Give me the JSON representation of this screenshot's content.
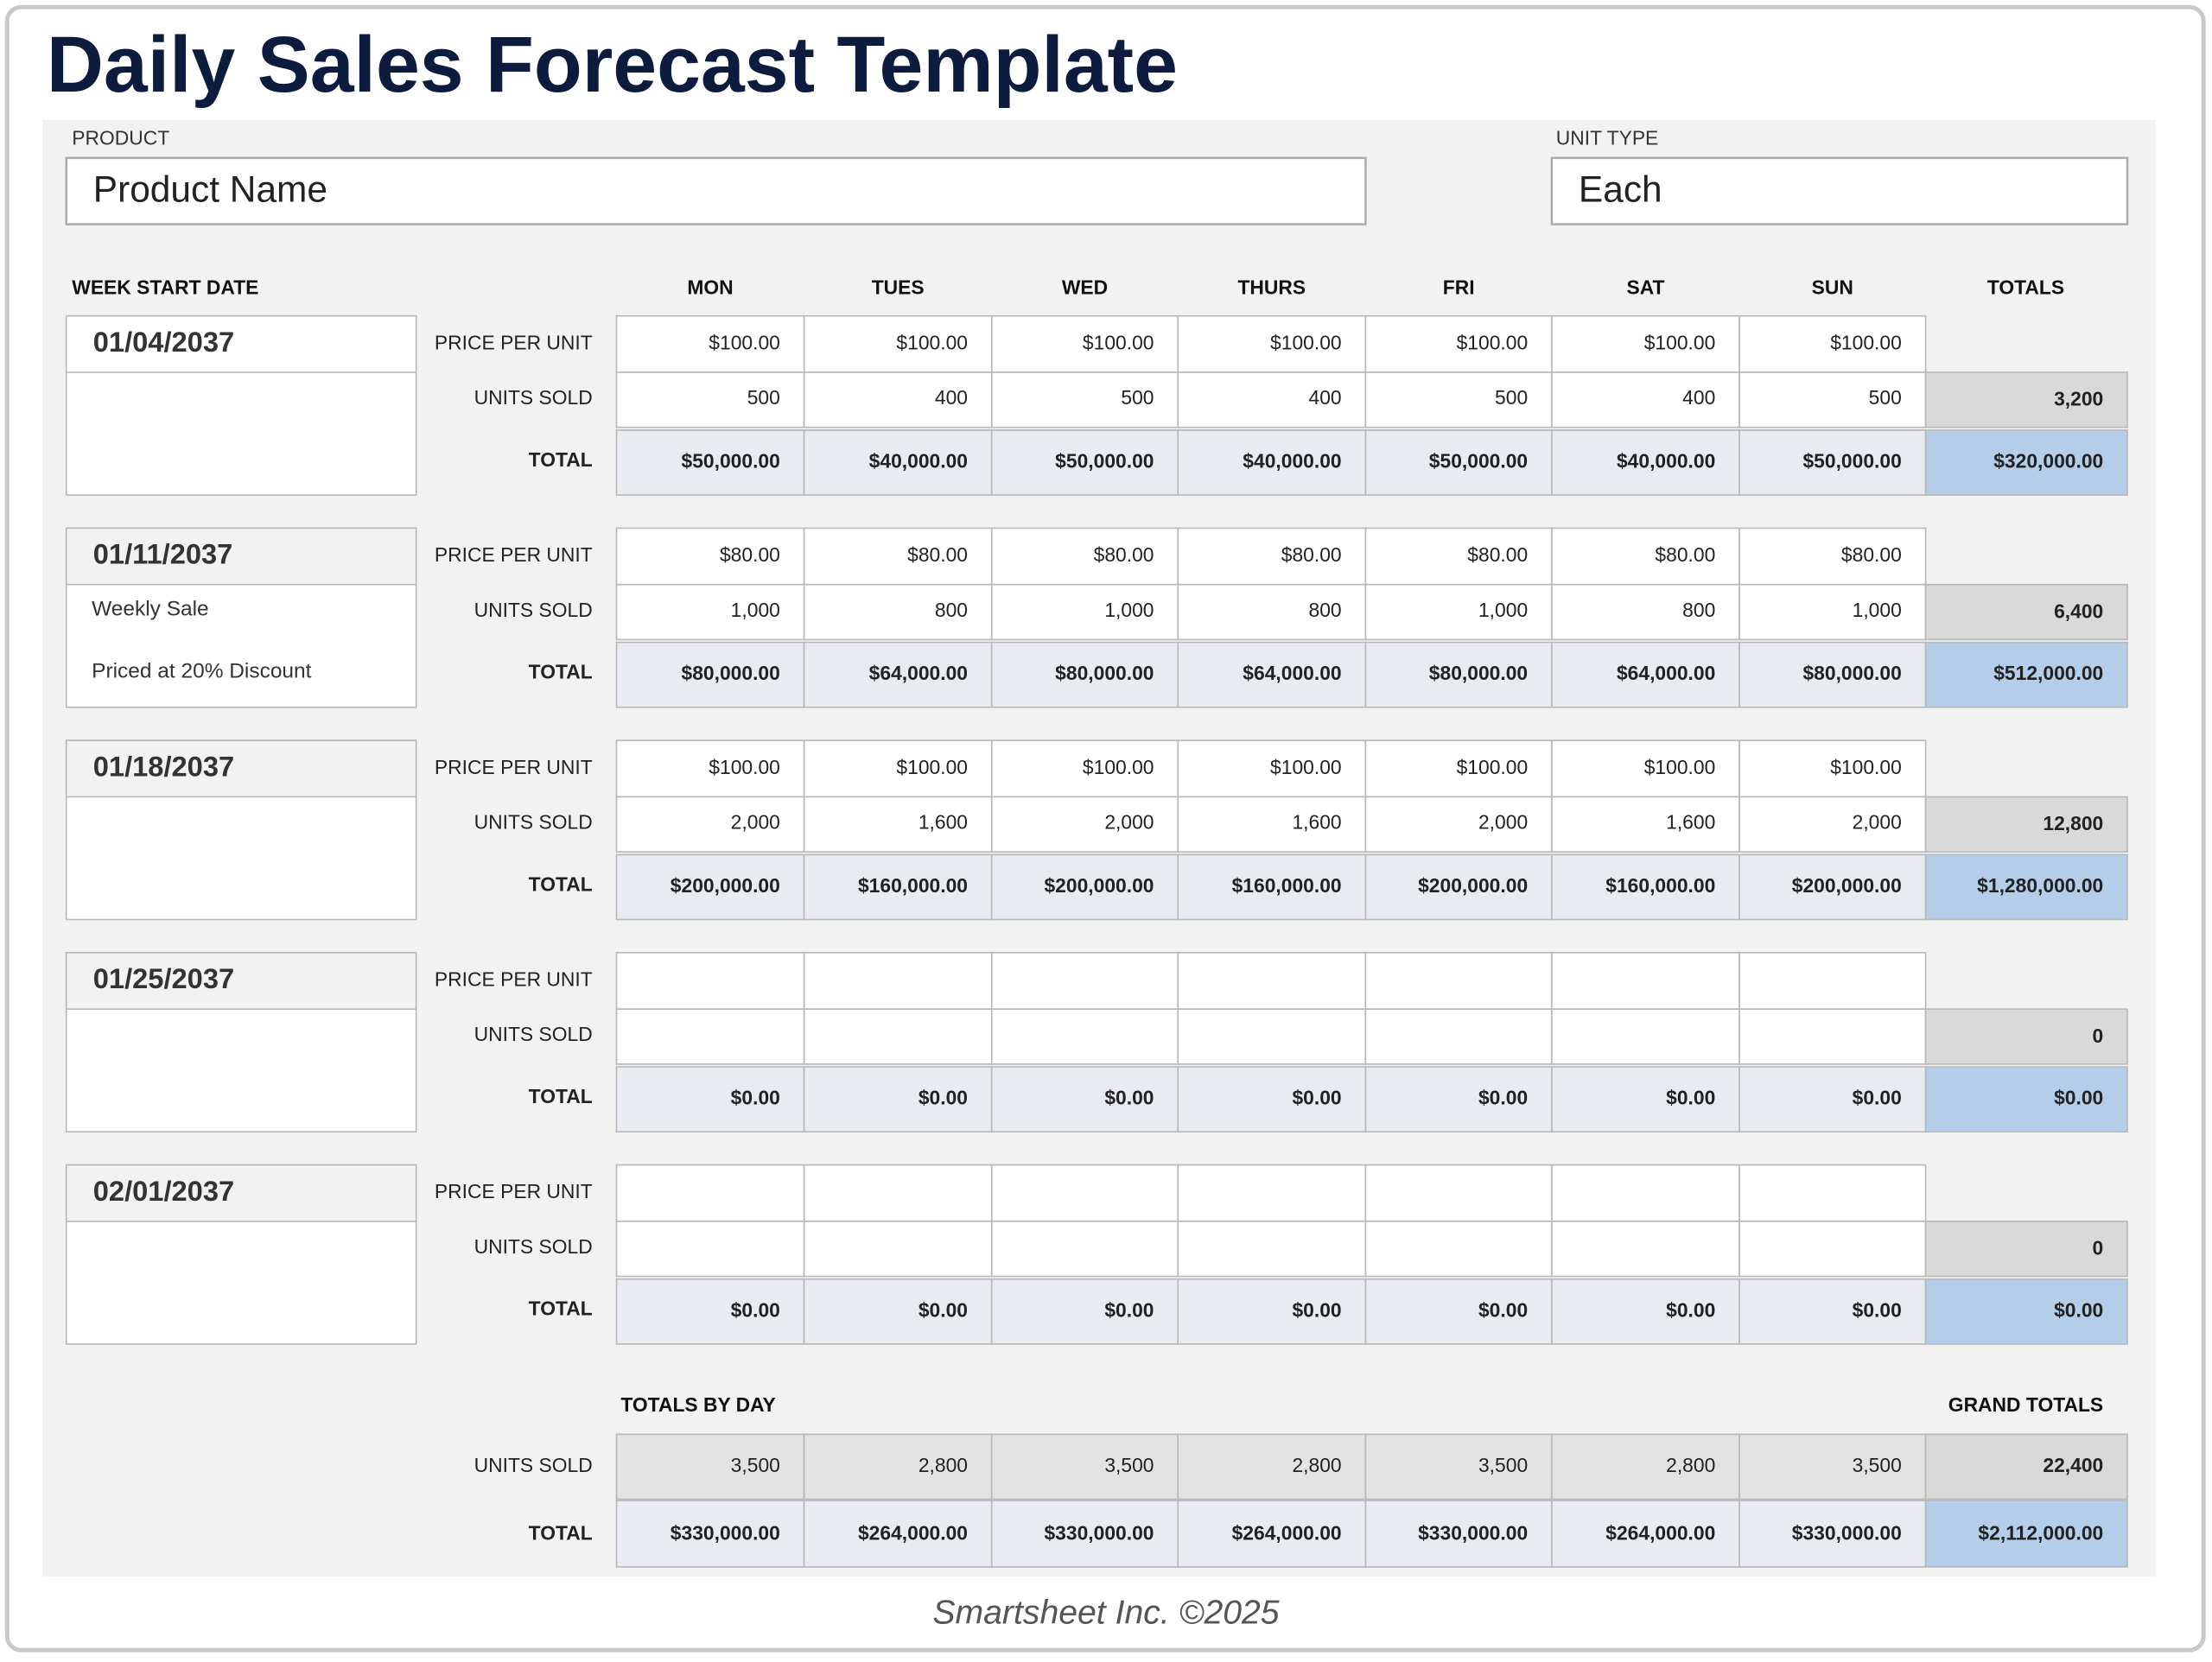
{
  "title": "Daily Sales Forecast Template",
  "product": {
    "label": "PRODUCT",
    "value": "Product Name"
  },
  "unit_type": {
    "label": "UNIT TYPE",
    "value": "Each"
  },
  "table": {
    "week_header": "WEEK START DATE",
    "days": [
      "MON",
      "TUES",
      "WED",
      "THURS",
      "FRI",
      "SAT",
      "SUN"
    ],
    "totals_header": "TOTALS",
    "row_labels": [
      "PRICE PER UNIT",
      "UNITS SOLD",
      "TOTAL"
    ],
    "weeks": [
      {
        "date": "01/04/2037",
        "price": [
          "$100.00",
          "$100.00",
          "$100.00",
          "$100.00",
          "$100.00",
          "$100.00",
          "$100.00"
        ],
        "units": [
          "500",
          "400",
          "500",
          "400",
          "500",
          "400",
          "500"
        ],
        "total": [
          "$50,000.00",
          "$40,000.00",
          "$50,000.00",
          "$40,000.00",
          "$50,000.00",
          "$40,000.00",
          "$50,000.00"
        ],
        "units_total": "3,200",
        "total_sum": "$320,000.00"
      },
      {
        "date": "01/11/2037",
        "notes": [
          "Weekly Sale",
          "Priced at 20% Discount"
        ],
        "price": [
          "$80.00",
          "$80.00",
          "$80.00",
          "$80.00",
          "$80.00",
          "$80.00",
          "$80.00"
        ],
        "units": [
          "1,000",
          "800",
          "1,000",
          "800",
          "1,000",
          "800",
          "1,000"
        ],
        "total": [
          "$80,000.00",
          "$64,000.00",
          "$80,000.00",
          "$64,000.00",
          "$80,000.00",
          "$64,000.00",
          "$80,000.00"
        ],
        "units_total": "6,400",
        "total_sum": "$512,000.00"
      },
      {
        "date": "01/18/2037",
        "price": [
          "$100.00",
          "$100.00",
          "$100.00",
          "$100.00",
          "$100.00",
          "$100.00",
          "$100.00"
        ],
        "units": [
          "2,000",
          "1,600",
          "2,000",
          "1,600",
          "2,000",
          "1,600",
          "2,000"
        ],
        "total": [
          "$200,000.00",
          "$160,000.00",
          "$200,000.00",
          "$160,000.00",
          "$200,000.00",
          "$160,000.00",
          "$200,000.00"
        ],
        "units_total": "12,800",
        "total_sum": "$1,280,000.00"
      },
      {
        "date": "01/25/2037",
        "total": [
          "$0.00",
          "$0.00",
          "$0.00",
          "$0.00",
          "$0.00",
          "$0.00",
          "$0.00"
        ],
        "units_total": "0",
        "total_sum": "$0.00"
      },
      {
        "date": "02/01/2037",
        "total": [
          "$0.00",
          "$0.00",
          "$0.00",
          "$0.00",
          "$0.00",
          "$0.00",
          "$0.00"
        ],
        "units_total": "0",
        "total_sum": "$0.00"
      }
    ],
    "totals_by_day": {
      "label": "TOTALS BY DAY",
      "grand_label": "GRAND TOTALS",
      "units": [
        "3,500",
        "2,800",
        "3,500",
        "2,800",
        "3,500",
        "2,800",
        "3,500"
      ],
      "total": [
        "$330,000.00",
        "$264,000.00",
        "$330,000.00",
        "$264,000.00",
        "$330,000.00",
        "$264,000.00",
        "$330,000.00"
      ],
      "units_grand": "22,400",
      "total_grand": "$2,112,000.00"
    }
  },
  "footer": "Smartsheet Inc. ©2025"
}
